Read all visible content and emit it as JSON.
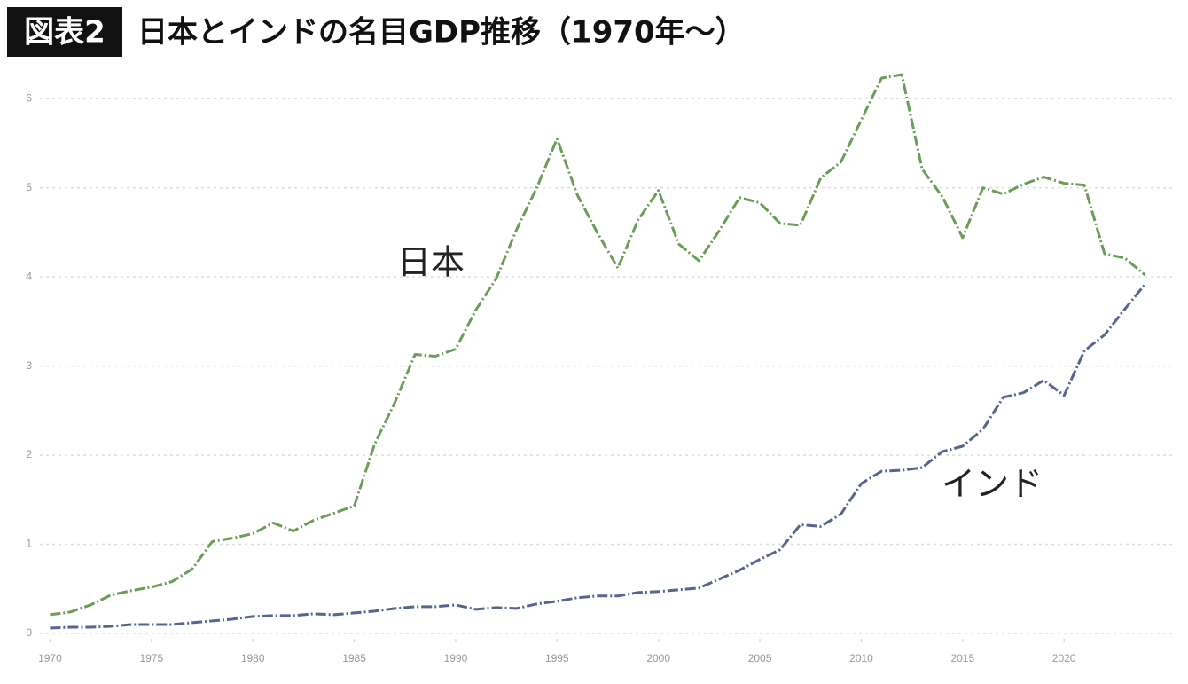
{
  "chart_data": {
    "type": "line",
    "badge": "図表2",
    "title": "日本とインドの名目GDP推移（1970年〜）",
    "x": [
      1970,
      1971,
      1972,
      1973,
      1974,
      1975,
      1976,
      1977,
      1978,
      1979,
      1980,
      1981,
      1982,
      1983,
      1984,
      1985,
      1986,
      1987,
      1988,
      1989,
      1990,
      1991,
      1992,
      1993,
      1994,
      1995,
      1996,
      1997,
      1998,
      1999,
      2000,
      2001,
      2002,
      2003,
      2004,
      2005,
      2006,
      2007,
      2008,
      2009,
      2010,
      2011,
      2012,
      2013,
      2014,
      2015,
      2016,
      2017,
      2018,
      2019,
      2020,
      2021,
      2022,
      2023,
      2024
    ],
    "series": [
      {
        "name": "日本",
        "color": "#6a9e58",
        "values": [
          0.21,
          0.24,
          0.32,
          0.43,
          0.48,
          0.52,
          0.58,
          0.72,
          1.03,
          1.07,
          1.12,
          1.24,
          1.15,
          1.27,
          1.35,
          1.43,
          2.12,
          2.59,
          3.13,
          3.11,
          3.19,
          3.63,
          3.98,
          4.53,
          5.0,
          5.55,
          4.92,
          4.49,
          4.1,
          4.64,
          4.97,
          4.37,
          4.18,
          4.52,
          4.89,
          4.83,
          4.6,
          4.58,
          5.11,
          5.29,
          5.76,
          6.23,
          6.27,
          5.21,
          4.9,
          4.44,
          5.0,
          4.93,
          5.04,
          5.12,
          5.05,
          5.03,
          4.26,
          4.21,
          4.02
        ]
      },
      {
        "name": "インド",
        "color": "#56658f",
        "values": [
          0.06,
          0.07,
          0.07,
          0.08,
          0.1,
          0.1,
          0.1,
          0.12,
          0.14,
          0.16,
          0.19,
          0.2,
          0.2,
          0.22,
          0.21,
          0.23,
          0.25,
          0.28,
          0.3,
          0.3,
          0.32,
          0.27,
          0.29,
          0.28,
          0.33,
          0.36,
          0.4,
          0.42,
          0.42,
          0.46,
          0.47,
          0.49,
          0.51,
          0.61,
          0.71,
          0.83,
          0.94,
          1.22,
          1.2,
          1.34,
          1.68,
          1.82,
          1.83,
          1.86,
          2.04,
          2.1,
          2.29,
          2.65,
          2.7,
          2.84,
          2.67,
          3.17,
          3.35,
          3.64,
          3.92
        ]
      }
    ],
    "xlim": [
      1969.5,
      2025.5
    ],
    "xticks": [
      1970,
      1975,
      1980,
      1985,
      1990,
      1995,
      2000,
      2005,
      2010,
      2015,
      2020
    ],
    "ylim": [
      0,
      6.4
    ],
    "yticks": [
      0,
      1,
      2,
      3,
      4,
      5,
      6
    ],
    "grid": true
  }
}
